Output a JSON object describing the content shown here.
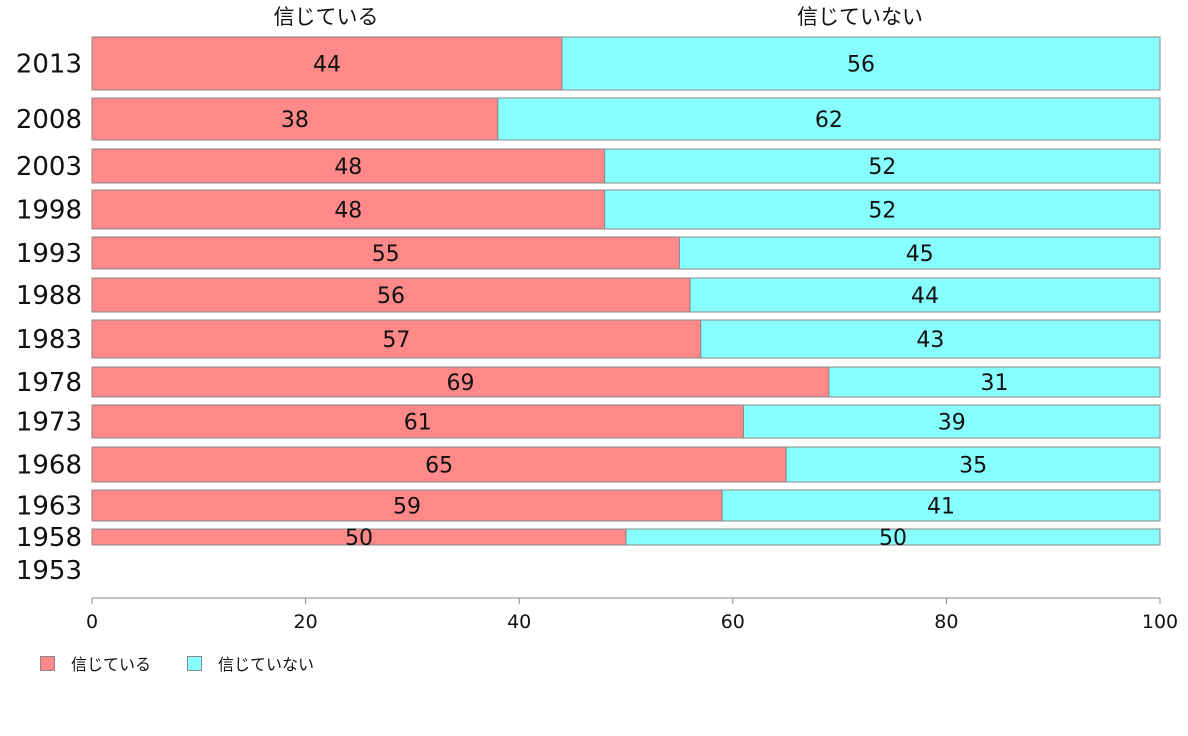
{
  "chart_data": {
    "type": "bar",
    "orientation": "horizontal",
    "stacked": true,
    "categories": [
      "2013",
      "2008",
      "2003",
      "1998",
      "1993",
      "1988",
      "1983",
      "1978",
      "1973",
      "1968",
      "1963",
      "1958",
      "1953"
    ],
    "series": [
      {
        "name": "信じている",
        "color": "#ff8888",
        "values": [
          44,
          38,
          48,
          48,
          55,
          56,
          57,
          69,
          61,
          65,
          59,
          50,
          null
        ],
        "labels": [
          "44",
          "38",
          "48",
          "48",
          "55",
          "56",
          "57",
          "69",
          "61",
          "65",
          "59",
          "50",
          ""
        ]
      },
      {
        "name": "信じていない",
        "color": "#88ffff",
        "values": [
          56,
          62,
          52,
          52,
          45,
          44,
          43,
          31,
          39,
          35,
          41,
          50,
          null
        ],
        "labels": [
          "56",
          "62",
          "52",
          "52",
          "45",
          "44",
          "43",
          "31",
          "39",
          "35",
          "41",
          "50",
          ""
        ]
      }
    ],
    "top_labels": [
      "信じている",
      "信じていない"
    ],
    "xlim": [
      0,
      100
    ],
    "x_ticks": [
      "0",
      "20",
      "40",
      "60",
      "80",
      "100"
    ],
    "grid": false,
    "legend_position": "bottom-left"
  }
}
